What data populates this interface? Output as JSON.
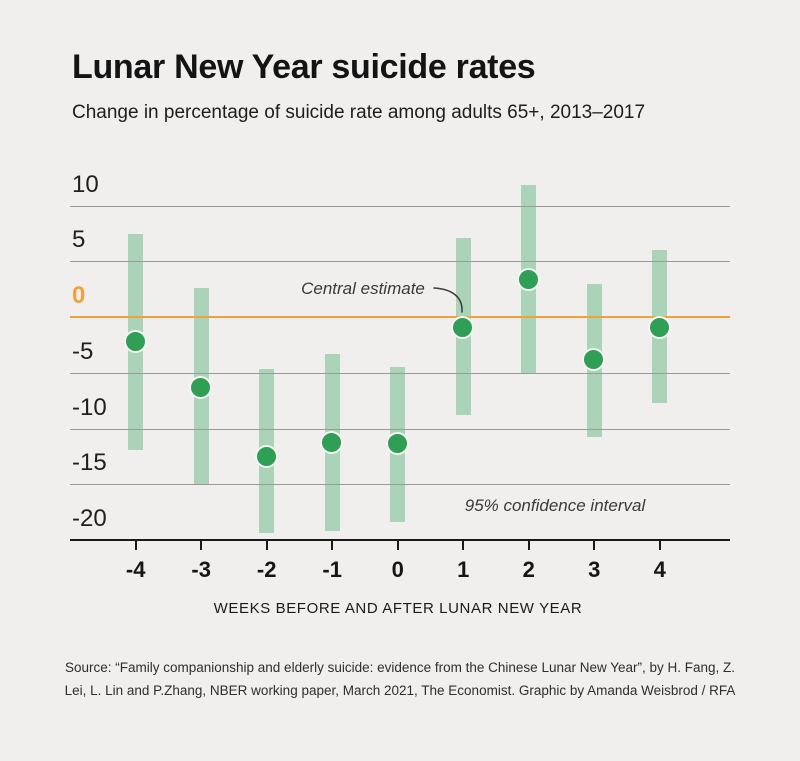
{
  "header": {
    "title": "Lunar New Year suicide rates",
    "subtitle": "Change in percentage of suicide rate among adults 65+, 2013–2017"
  },
  "chart": {
    "axis_title": "WEEKS BEFORE AND AFTER LUNAR NEW YEAR",
    "annotations": {
      "central": "Central estimate",
      "ci": "95% confidence interval"
    },
    "y_ticks": [
      {
        "label": "10",
        "value": 10
      },
      {
        "label": "5",
        "value": 5
      },
      {
        "label": "0",
        "value": 0
      },
      {
        "label": "-5",
        "value": -5
      },
      {
        "label": "-10",
        "value": -10
      },
      {
        "label": "-15",
        "value": -15
      },
      {
        "label": "-20",
        "value": -20
      }
    ]
  },
  "chart_data": {
    "type": "scatter",
    "subtype": "error_bar",
    "title": "Lunar New Year suicide rates",
    "subtitle": "Change in percentage of suicide rate among adults 65+, 2013–2017",
    "xlabel": "WEEKS BEFORE AND AFTER LUNAR NEW YEAR",
    "ylabel": "Change in percentage of suicide rate",
    "x": [
      -4,
      -3,
      -2,
      -1,
      0,
      1,
      2,
      3,
      4
    ],
    "series": [
      {
        "name": "Central estimate",
        "values": [
          -2.2,
          -6.4,
          -12.6,
          -11.3,
          -11.4,
          -1.0,
          3.3,
          -3.9,
          -1.0
        ]
      },
      {
        "name": "95% CI upper",
        "values": [
          7.4,
          2.6,
          -4.7,
          -3.3,
          -4.5,
          7.1,
          11.8,
          3.0,
          6.0
        ]
      },
      {
        "name": "95% CI lower",
        "values": [
          -11.9,
          -15.1,
          -19.4,
          -19.2,
          -18.4,
          -8.8,
          -5.1,
          -10.8,
          -7.7
        ]
      }
    ],
    "ylim": [
      -20,
      12
    ],
    "yticks": [
      10,
      5,
      0,
      -5,
      -10,
      -15,
      -20
    ],
    "grid": true,
    "legend": "none",
    "zero_line": true
  },
  "footer": {
    "source_line1": "Source: “Family companionship and elderly suicide: evidence from the Chinese Lunar New Year”, by H. Fang, Z.",
    "source_line2": "Lei, L. Lin and P.Zhang, NBER working paper, March 2021, The Economist. Graphic by Amanda Weisbrod / RFA"
  },
  "colors": {
    "background": "#f0efed",
    "bar": "#aad3b7",
    "dot": "#2f9f56",
    "dot_ring": "#f6f5f3",
    "zero_line": "#f0a23c",
    "gridline": "#9a9a98",
    "axis": "#1a1a1a",
    "title_text": "#141414",
    "muted_text": "#3a3a3a"
  }
}
